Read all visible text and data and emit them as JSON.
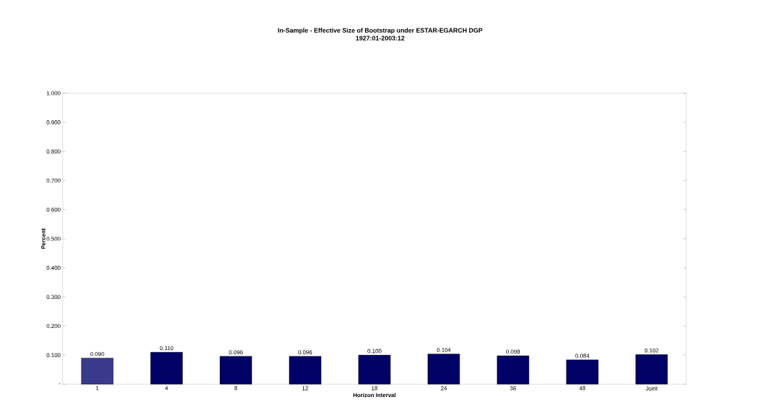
{
  "chart_data": {
    "type": "bar",
    "title": "In-Sample - Effective Size of Bootstrap under ESTAR-EGARCH DGP",
    "subtitle": "1927:01-2003:12",
    "xlabel": "Horizon Interval",
    "ylabel": "Percent",
    "categories": [
      "1",
      "4",
      "8",
      "12",
      "18",
      "24",
      "36",
      "48",
      "Joint"
    ],
    "values": [
      0.09,
      0.11,
      0.096,
      0.096,
      0.1,
      0.104,
      0.098,
      0.084,
      0.102
    ],
    "value_labels": [
      "0.090",
      "0.110",
      "0.096",
      "0.096",
      "0.100",
      "0.104",
      "0.098",
      "0.084",
      "0.102"
    ],
    "colors": [
      "#3a3a8c",
      "#000066",
      "#000066",
      "#000066",
      "#000066",
      "#000066",
      "#000066",
      "#000066",
      "#000066"
    ],
    "ylim": [
      0,
      1
    ],
    "yticks": [
      {
        "value": 0,
        "label": "-"
      },
      {
        "value": 0.1,
        "label": "0.100"
      },
      {
        "value": 0.2,
        "label": "0.200"
      },
      {
        "value": 0.3,
        "label": "0.300"
      },
      {
        "value": 0.4,
        "label": "0.400"
      },
      {
        "value": 0.5,
        "label": "0.500"
      },
      {
        "value": 0.6,
        "label": "0.600"
      },
      {
        "value": 0.7,
        "label": "0.700"
      },
      {
        "value": 0.8,
        "label": "0.800"
      },
      {
        "value": 0.9,
        "label": "0.900"
      },
      {
        "value": 1,
        "label": "1.000"
      }
    ],
    "grid": false
  }
}
